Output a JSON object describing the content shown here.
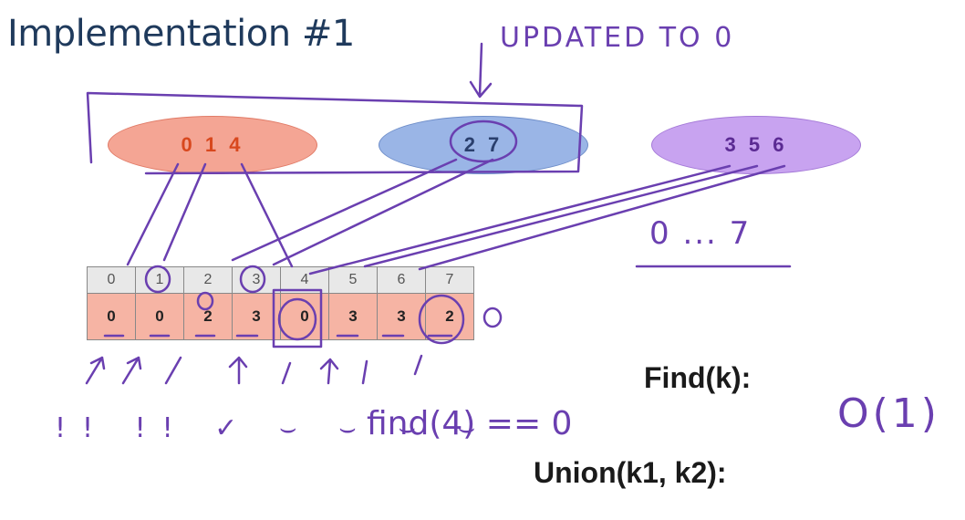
{
  "slide": {
    "title": "Implementation #1",
    "sets": [
      {
        "label": "0 1 4"
      },
      {
        "label": "2 7"
      },
      {
        "label": "3 5 6"
      }
    ],
    "array": {
      "indices": [
        "0",
        "1",
        "2",
        "3",
        "4",
        "5",
        "6",
        "7"
      ],
      "values": [
        "0",
        "0",
        "2",
        "3",
        "0",
        "3",
        "3",
        "2"
      ]
    },
    "find_label": "Find(k):",
    "union_label": "Union(k1, k2):"
  },
  "annotations": {
    "updated_note": "UPDATED TO 0",
    "range_note": "0 ... 7",
    "find_expr": "find(4) == 0",
    "complexity": "O(1)",
    "ticks": "!! !! ✓ ⌣ ⌣ ⌣ ⌣",
    "ink_color": "#6a3fb0"
  },
  "colors": {
    "title": "#1f3a5c",
    "set_red": "#f4a594",
    "set_blue": "#9ab5e6",
    "set_purple": "#c8a3f0",
    "array_value_bg": "#f6b4a4",
    "array_index_bg": "#e8e8e8"
  }
}
